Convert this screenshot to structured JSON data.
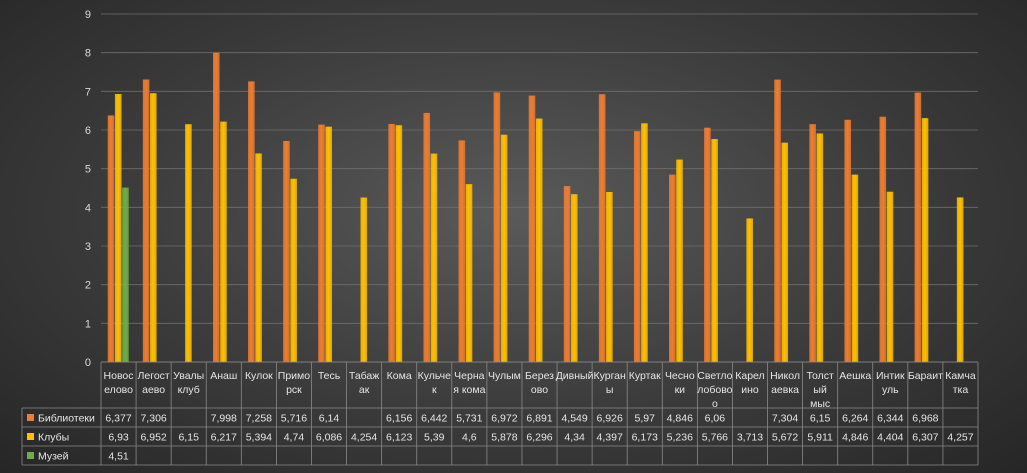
{
  "chart_data": {
    "type": "bar",
    "title": "",
    "xlabel": "",
    "ylabel": "",
    "ylim": [
      0,
      9
    ],
    "yticks": [
      "0",
      "1",
      "2",
      "3",
      "4",
      "5",
      "6",
      "7",
      "8",
      "9"
    ],
    "legend_position": "data-table-left",
    "categories": [
      [
        "Новос",
        "елово"
      ],
      [
        "Легост",
        "аево"
      ],
      [
        "Увалы",
        "клуб"
      ],
      [
        "Анаш"
      ],
      [
        "Кулок"
      ],
      [
        "Примо",
        "рск"
      ],
      [
        "Тесь"
      ],
      [
        "Табаж",
        "ак"
      ],
      [
        "Кома"
      ],
      [
        "Кульче",
        "к"
      ],
      [
        "Черна",
        "я кома"
      ],
      [
        "Чулым"
      ],
      [
        "Берез",
        "ово"
      ],
      [
        "Дивный"
      ],
      [
        "Курган",
        "ы"
      ],
      [
        "Куртак"
      ],
      [
        "Чесно",
        "ки"
      ],
      [
        "Светло",
        "лобово",
        "о"
      ],
      [
        "Карел",
        "ино"
      ],
      [
        "Никол",
        "аевка"
      ],
      [
        "Толст",
        "ый",
        "мыс"
      ],
      [
        "Аешка"
      ],
      [
        "Интик",
        "уль"
      ],
      [
        "Бараит"
      ],
      [
        "Камча",
        "тка"
      ]
    ],
    "series": [
      {
        "name": "Библиотеки",
        "color": "#ed7d31",
        "values": [
          6.377,
          7.306,
          null,
          7.998,
          7.258,
          5.716,
          6.14,
          null,
          6.156,
          6.442,
          5.731,
          6.972,
          6.891,
          4.549,
          6.926,
          5.97,
          4.846,
          6.06,
          null,
          7.304,
          6.15,
          6.264,
          6.344,
          6.968,
          null
        ],
        "labels": [
          "6,377",
          "7,306",
          "",
          "7,998",
          "7,258",
          "5,716",
          "6,14",
          "",
          "6,156",
          "6,442",
          "5,731",
          "6,972",
          "6,891",
          "4,549",
          "6,926",
          "5,97",
          "4,846",
          "6,06",
          "",
          "7,304",
          "6,15",
          "6,264",
          "6,344",
          "6,968",
          ""
        ]
      },
      {
        "name": "Клубы",
        "color": "#ffc000",
        "values": [
          6.93,
          6.952,
          6.15,
          6.217,
          5.394,
          4.74,
          6.086,
          4.254,
          6.123,
          5.39,
          4.6,
          5.878,
          6.296,
          4.34,
          4.397,
          6.173,
          5.236,
          5.766,
          3.713,
          5.672,
          5.911,
          4.846,
          4.404,
          6.307,
          4.257
        ],
        "labels": [
          "6,93",
          "6,952",
          "6,15",
          "6,217",
          "5,394",
          "4,74",
          "6,086",
          "4,254",
          "6,123",
          "5,39",
          "4,6",
          "5,878",
          "6,296",
          "4,34",
          "4,397",
          "6,173",
          "5,236",
          "5,766",
          "3,713",
          "5,672",
          "5,911",
          "4,846",
          "4,404",
          "6,307",
          "4,257"
        ]
      },
      {
        "name": "Музей",
        "color": "#70ad47",
        "values": [
          4.51,
          null,
          null,
          null,
          null,
          null,
          null,
          null,
          null,
          null,
          null,
          null,
          null,
          null,
          null,
          null,
          null,
          null,
          null,
          null,
          null,
          null,
          null,
          null,
          null
        ],
        "labels": [
          "4,51",
          "",
          "",
          "",
          "",
          "",
          "",
          "",
          "",
          "",
          "",
          "",
          "",
          "",
          "",
          "",
          "",
          "",
          "",
          "",
          "",
          "",
          "",
          "",
          ""
        ]
      }
    ]
  }
}
